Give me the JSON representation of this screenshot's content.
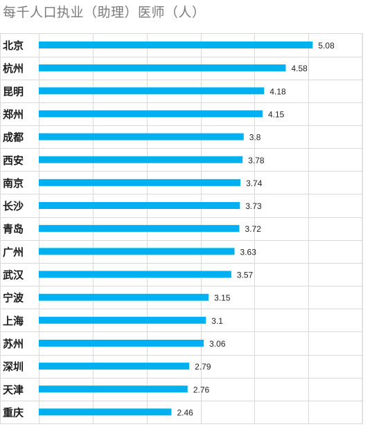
{
  "chart_data": {
    "type": "bar",
    "orientation": "horizontal",
    "title": "每千人口执业（助理）医师（人）",
    "categories": [
      "北京",
      "杭州",
      "昆明",
      "郑州",
      "成都",
      "西安",
      "南京",
      "长沙",
      "青岛",
      "广州",
      "武汉",
      "宁波",
      "上海",
      "苏州",
      "深圳",
      "天津",
      "重庆"
    ],
    "values": [
      5.08,
      4.58,
      4.18,
      4.15,
      3.8,
      3.78,
      3.74,
      3.73,
      3.72,
      3.63,
      3.57,
      3.15,
      3.1,
      3.06,
      2.79,
      2.76,
      2.46
    ],
    "value_labels": [
      "5.08",
      "4.58",
      "4.18",
      "4.15",
      "3.8",
      "3.78",
      "3.74",
      "3.73",
      "3.72",
      "3.63",
      "3.57",
      "3.15",
      "3.1",
      "3.06",
      "2.79",
      "2.76",
      "2.46"
    ],
    "xlim": [
      0,
      6
    ],
    "grid": "vertical",
    "bar_color": "#00b0f0"
  }
}
